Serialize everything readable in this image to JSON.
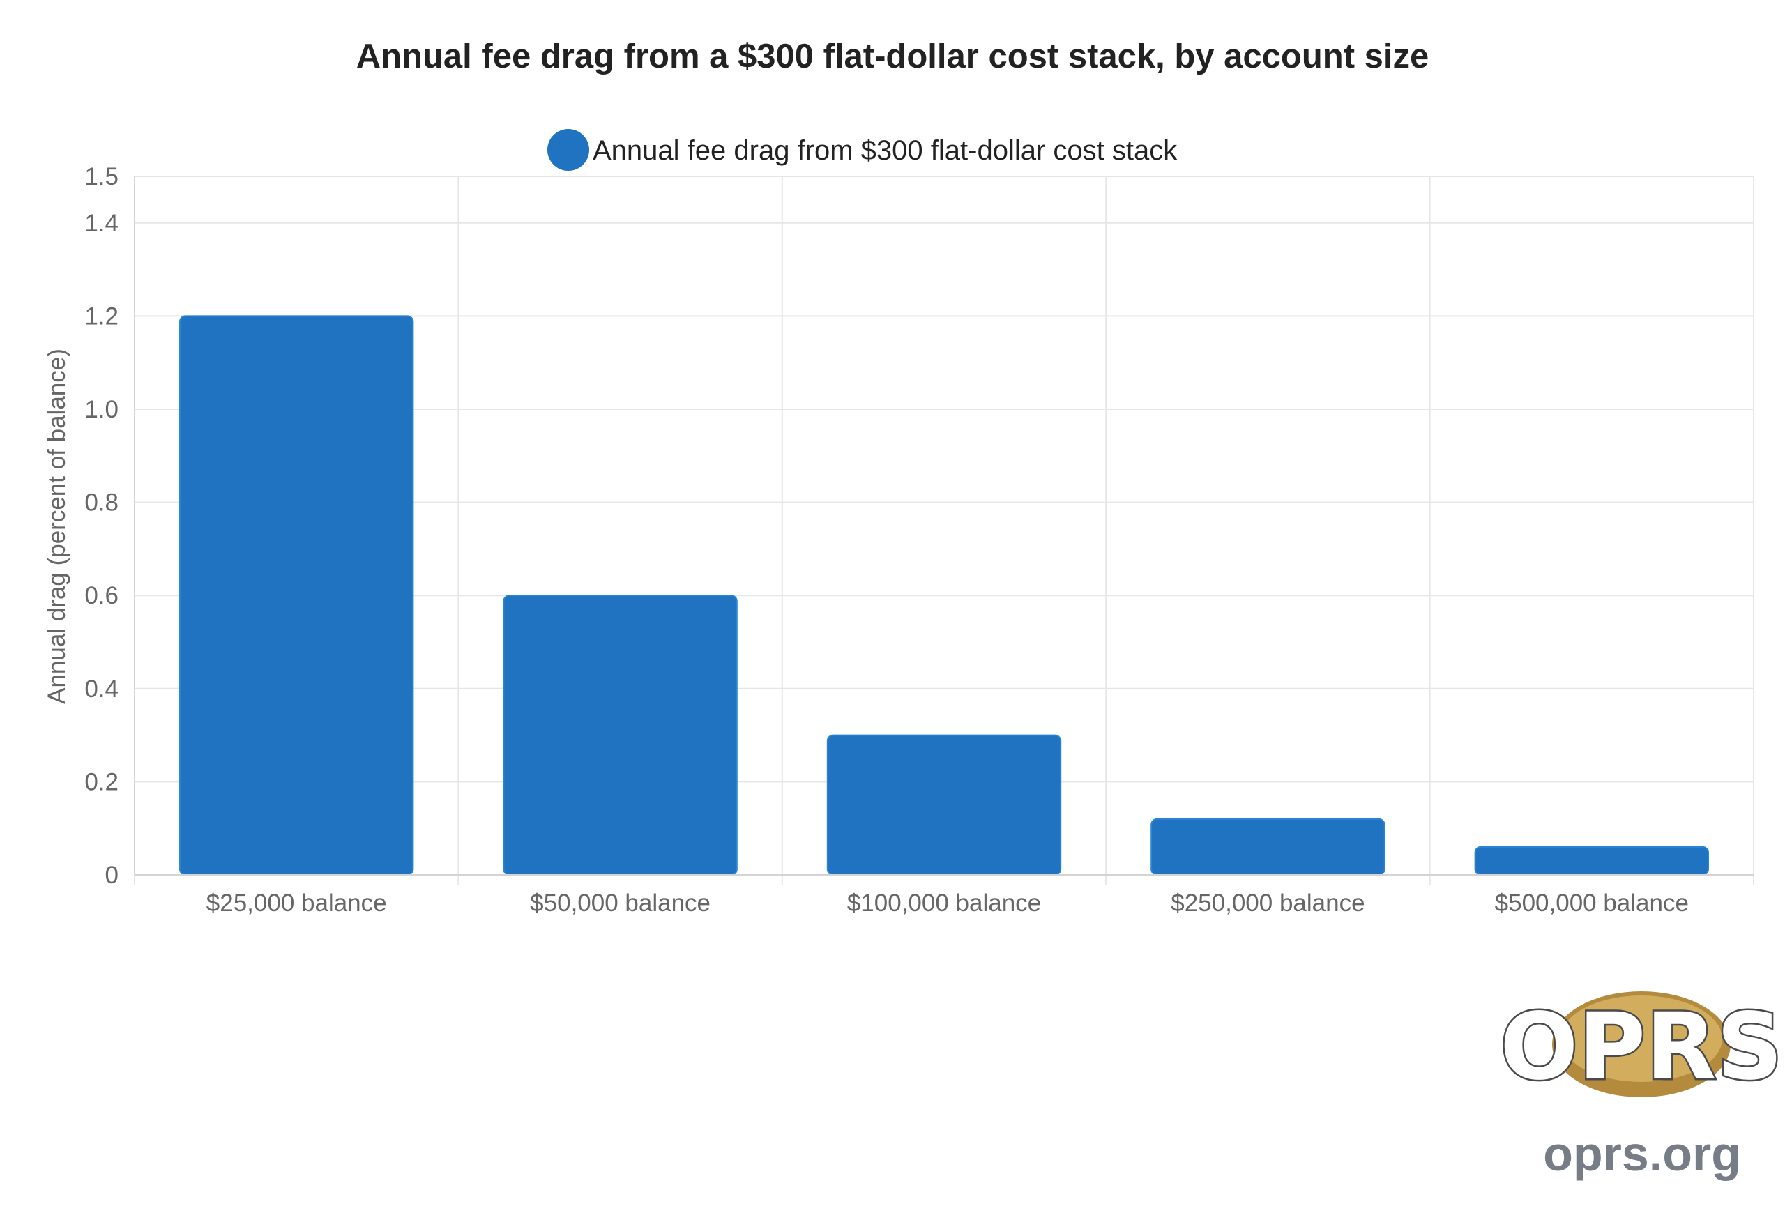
{
  "chart_data": {
    "type": "bar",
    "title": "Annual fee drag from a $300 flat-dollar cost stack, by account size",
    "xlabel": "",
    "ylabel": "Annual drag (percent of balance)",
    "categories": [
      "$25,000 balance",
      "$50,000 balance",
      "$100,000 balance",
      "$250,000 balance",
      "$500,000 balance"
    ],
    "series": [
      {
        "name": "Annual fee drag from $300 flat-dollar cost stack",
        "values": [
          1.2,
          0.6,
          0.3,
          0.12,
          0.06
        ],
        "color": "#1f73c0"
      }
    ],
    "ylim": [
      0,
      1.5
    ],
    "yticks": [
      "0",
      "0.2",
      "0.4",
      "0.6",
      "0.8",
      "1.0",
      "1.2",
      "1.4",
      "1.5"
    ],
    "ytick_values": [
      0,
      0.2,
      0.4,
      0.6,
      0.8,
      1.0,
      1.2,
      1.4,
      1.5
    ],
    "grid": true,
    "legend_position": "top-center"
  },
  "branding": {
    "logo_text": "OPRS",
    "website": "oprs.org"
  }
}
